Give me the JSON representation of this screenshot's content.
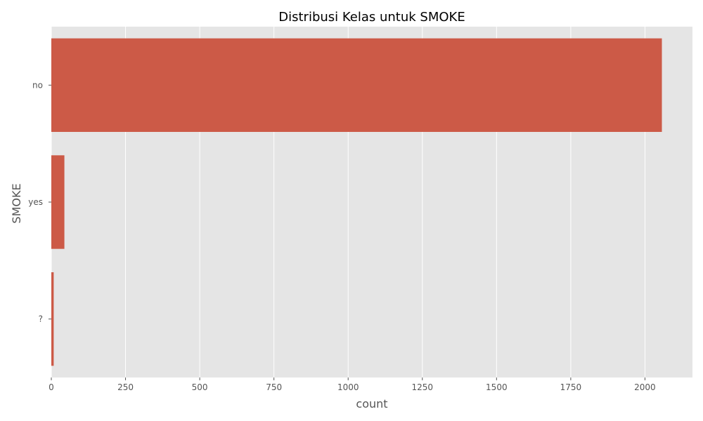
{
  "chart_data": {
    "type": "bar",
    "orientation": "horizontal",
    "title": "Distribusi Kelas untuk SMOKE",
    "xlabel": "count",
    "ylabel": "SMOKE",
    "categories": [
      "no",
      "yes",
      "?"
    ],
    "values": [
      2057,
      44,
      8
    ],
    "xlim": [
      0,
      2160
    ],
    "xticks": [
      0,
      250,
      500,
      750,
      1000,
      1250,
      1500,
      1750,
      2000
    ],
    "grid": true,
    "legend": false,
    "colors": {
      "bar": "#cc5a47",
      "plot_background": "#e5e5e5",
      "grid": "#ffffff",
      "axis_text": "#555555",
      "title_text": "#000000"
    }
  }
}
